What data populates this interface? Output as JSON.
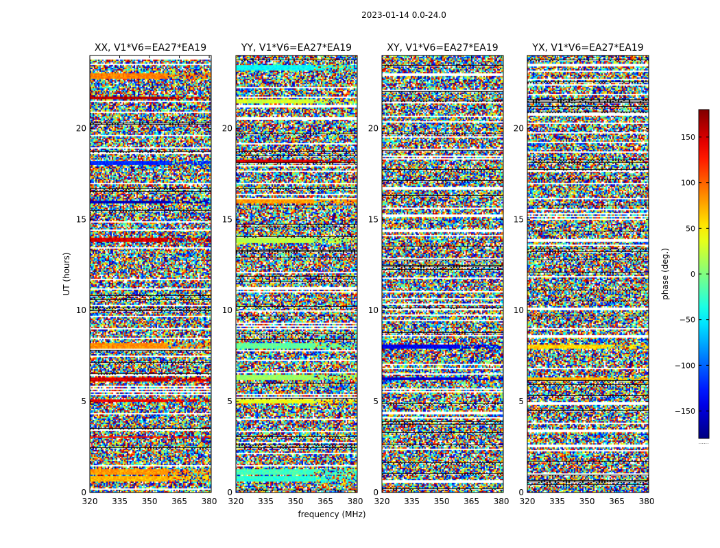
{
  "figure": {
    "suptitle": "2023-01-14 0.0-24.0"
  },
  "chart_data": {
    "type": "heatmap",
    "title": "2023-01-14 0.0-24.0",
    "xlabel": "frequency (MHz)",
    "ylabel": "UT (hours)",
    "xlim": [
      320,
      381
    ],
    "ylim": [
      0,
      24
    ],
    "x_ticks": [
      320,
      335,
      350,
      365,
      380
    ],
    "y_ticks": [
      0,
      5,
      10,
      15,
      20
    ],
    "panels": [
      {
        "title": "XX, V1*V6=EA27*EA19",
        "coherent_bands": [
          {
            "t0": 0.6,
            "t1": 0.9,
            "phase": 70
          },
          {
            "t0": 0.95,
            "t1": 1.3,
            "phase": 80
          },
          {
            "t0": 3.0,
            "t1": 3.1,
            "phase": 130
          },
          {
            "t0": 5.0,
            "t1": 5.15,
            "phase": 140
          },
          {
            "t0": 6.1,
            "t1": 6.35,
            "phase": 150
          },
          {
            "t0": 7.9,
            "t1": 8.2,
            "phase": 85
          },
          {
            "t0": 13.8,
            "t1": 14.0,
            "phase": 150
          },
          {
            "t0": 15.85,
            "t1": 16.05,
            "phase": -160
          },
          {
            "t0": 17.95,
            "t1": 18.2,
            "phase": -120
          },
          {
            "t0": 21.6,
            "t1": 21.75,
            "phase": 160
          },
          {
            "t0": 22.75,
            "t1": 23.0,
            "phase": 90
          }
        ]
      },
      {
        "title": "YY, V1*V6=EA27*EA19",
        "coherent_bands": [
          {
            "t0": 0.6,
            "t1": 0.9,
            "phase": -30
          },
          {
            "t0": 0.95,
            "t1": 1.3,
            "phase": -20
          },
          {
            "t0": 4.9,
            "t1": 5.1,
            "phase": 40
          },
          {
            "t0": 6.2,
            "t1": 6.5,
            "phase": 10
          },
          {
            "t0": 7.9,
            "t1": 8.2,
            "phase": -10
          },
          {
            "t0": 13.7,
            "t1": 14.0,
            "phase": 20
          },
          {
            "t0": 15.9,
            "t1": 16.1,
            "phase": 80
          },
          {
            "t0": 18.1,
            "t1": 18.3,
            "phase": 150
          },
          {
            "t0": 21.4,
            "t1": 21.6,
            "phase": 30
          },
          {
            "t0": 23.2,
            "t1": 23.5,
            "phase": -45
          }
        ]
      },
      {
        "title": "XY, V1*V6=EA27*EA19",
        "coherent_bands": [
          {
            "t0": 6.2,
            "t1": 6.35,
            "phase": -150
          },
          {
            "t0": 7.9,
            "t1": 8.1,
            "phase": -140
          }
        ]
      },
      {
        "title": "YX, V1*V6=EA27*EA19",
        "coherent_bands": [
          {
            "t0": 6.2,
            "t1": 6.35,
            "phase": 70
          },
          {
            "t0": 7.9,
            "t1": 8.1,
            "phase": 60
          }
        ]
      }
    ],
    "colorbar": {
      "label": "phase (deg.)",
      "range": [
        -180,
        180
      ],
      "ticks": [
        -150,
        -100,
        -50,
        0,
        50,
        100,
        150
      ],
      "colormap": "jet",
      "below_label": "......"
    }
  }
}
